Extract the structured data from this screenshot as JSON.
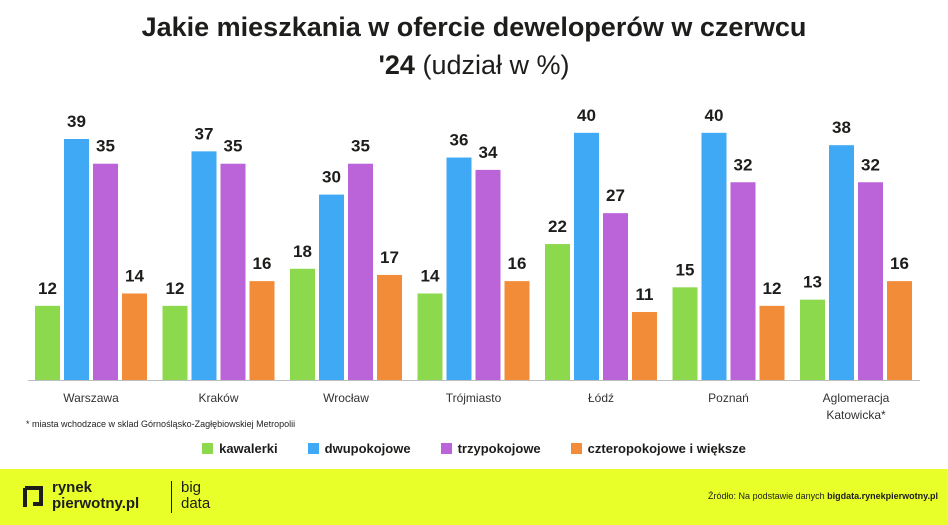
{
  "title": {
    "line1": "Jakie mieszkania w ofercie deweloperów w czerwcu",
    "line2_bold": "'24",
    "line2_light": "(udział w %)"
  },
  "footnote": "* miasta wchodzace w sklad Górnośląsko-Zagłębiowskiej Metropolii",
  "footer": {
    "logo_line1": "rynek",
    "logo_line2": "pierwotny.pl",
    "bigdata_line1": "big",
    "bigdata_line2": "data",
    "source_prefix": "Źródło: Na podstawie danych",
    "source_link": "bigdata.rynekpierwotny.pl"
  },
  "chart_data": {
    "type": "bar",
    "categories": [
      "Warszawa",
      "Kraków",
      "Wrocław",
      "Trójmiasto",
      "Łódź",
      "Poznań",
      "Aglomeracja Katowicka*"
    ],
    "series": [
      {
        "name": "kawalerki",
        "color": "#8cd94e",
        "values": [
          12,
          12,
          18,
          14,
          22,
          15,
          13
        ]
      },
      {
        "name": "dwupokojowe",
        "color": "#3fa9f5",
        "values": [
          39,
          37,
          30,
          36,
          40,
          40,
          38
        ]
      },
      {
        "name": "trzypokojowe",
        "color": "#bb63d9",
        "values": [
          35,
          35,
          35,
          34,
          27,
          32,
          32
        ]
      },
      {
        "name": "czteropokojowe i większe",
        "color": "#f28c38",
        "values": [
          14,
          16,
          17,
          16,
          11,
          12,
          16
        ]
      }
    ],
    "ylim": [
      0,
      45
    ],
    "grid": false,
    "data_labels": true,
    "legend_position": "bottom"
  }
}
